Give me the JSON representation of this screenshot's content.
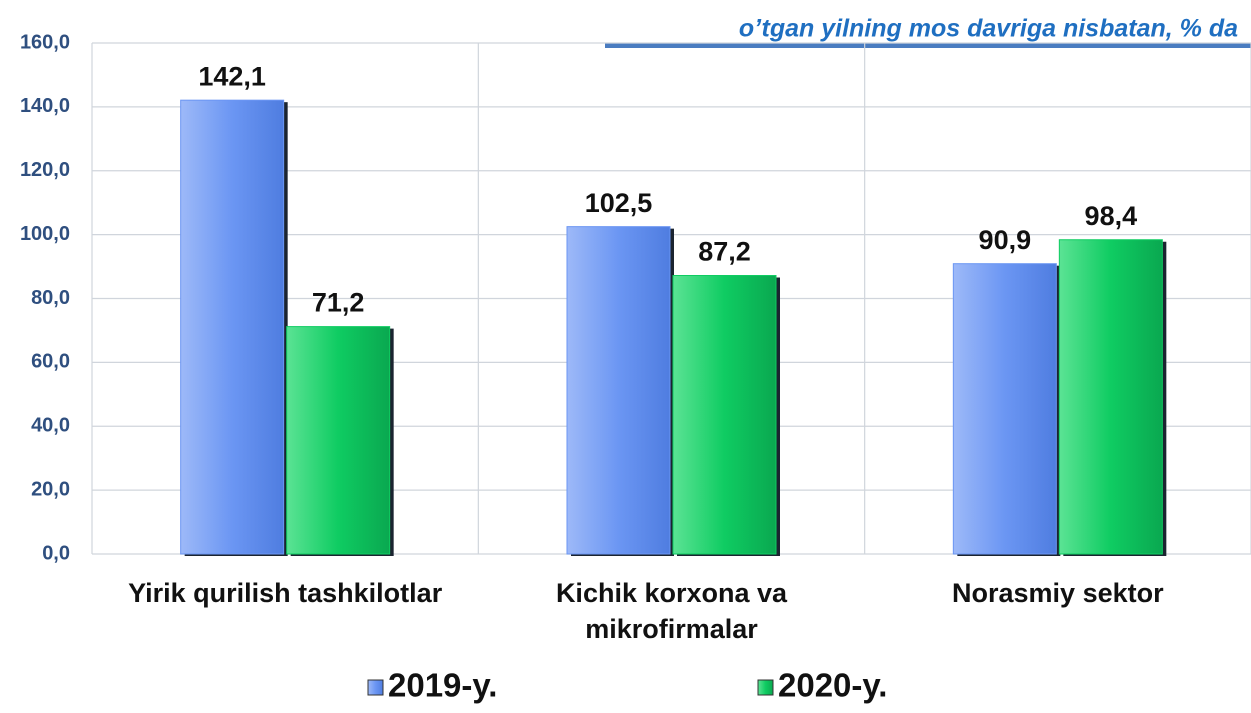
{
  "chart_data": {
    "type": "bar",
    "subtitle": "o’tgan yilning mos davriga nisbatan, % da",
    "categories": [
      "Yirik qurilish tashkilotlar",
      "Kichik korxona va mikrofirmalar",
      "Norasmiy sektor"
    ],
    "series": [
      {
        "name": "2019-y.",
        "color": "#6b96f3",
        "values": [
          142.1,
          102.5,
          90.9
        ],
        "value_labels": [
          "142,1",
          "102,5",
          "90,9"
        ]
      },
      {
        "name": "2020-y.",
        "color": "#0fcc62",
        "values": [
          71.2,
          87.2,
          98.4
        ],
        "value_labels": [
          "71,2",
          "87,2",
          "98,4"
        ]
      }
    ],
    "ylim": [
      0,
      160
    ],
    "yticks": [
      {
        "value": 0,
        "label": "0,0"
      },
      {
        "value": 20,
        "label": "20,0"
      },
      {
        "value": 40,
        "label": "40,0"
      },
      {
        "value": 60,
        "label": "60,0"
      },
      {
        "value": 80,
        "label": "80,0"
      },
      {
        "value": 100,
        "label": "100,0"
      },
      {
        "value": 120,
        "label": "120,0"
      },
      {
        "value": 140,
        "label": "140,0"
      },
      {
        "value": 160,
        "label": "160,0"
      }
    ],
    "grid": true
  }
}
